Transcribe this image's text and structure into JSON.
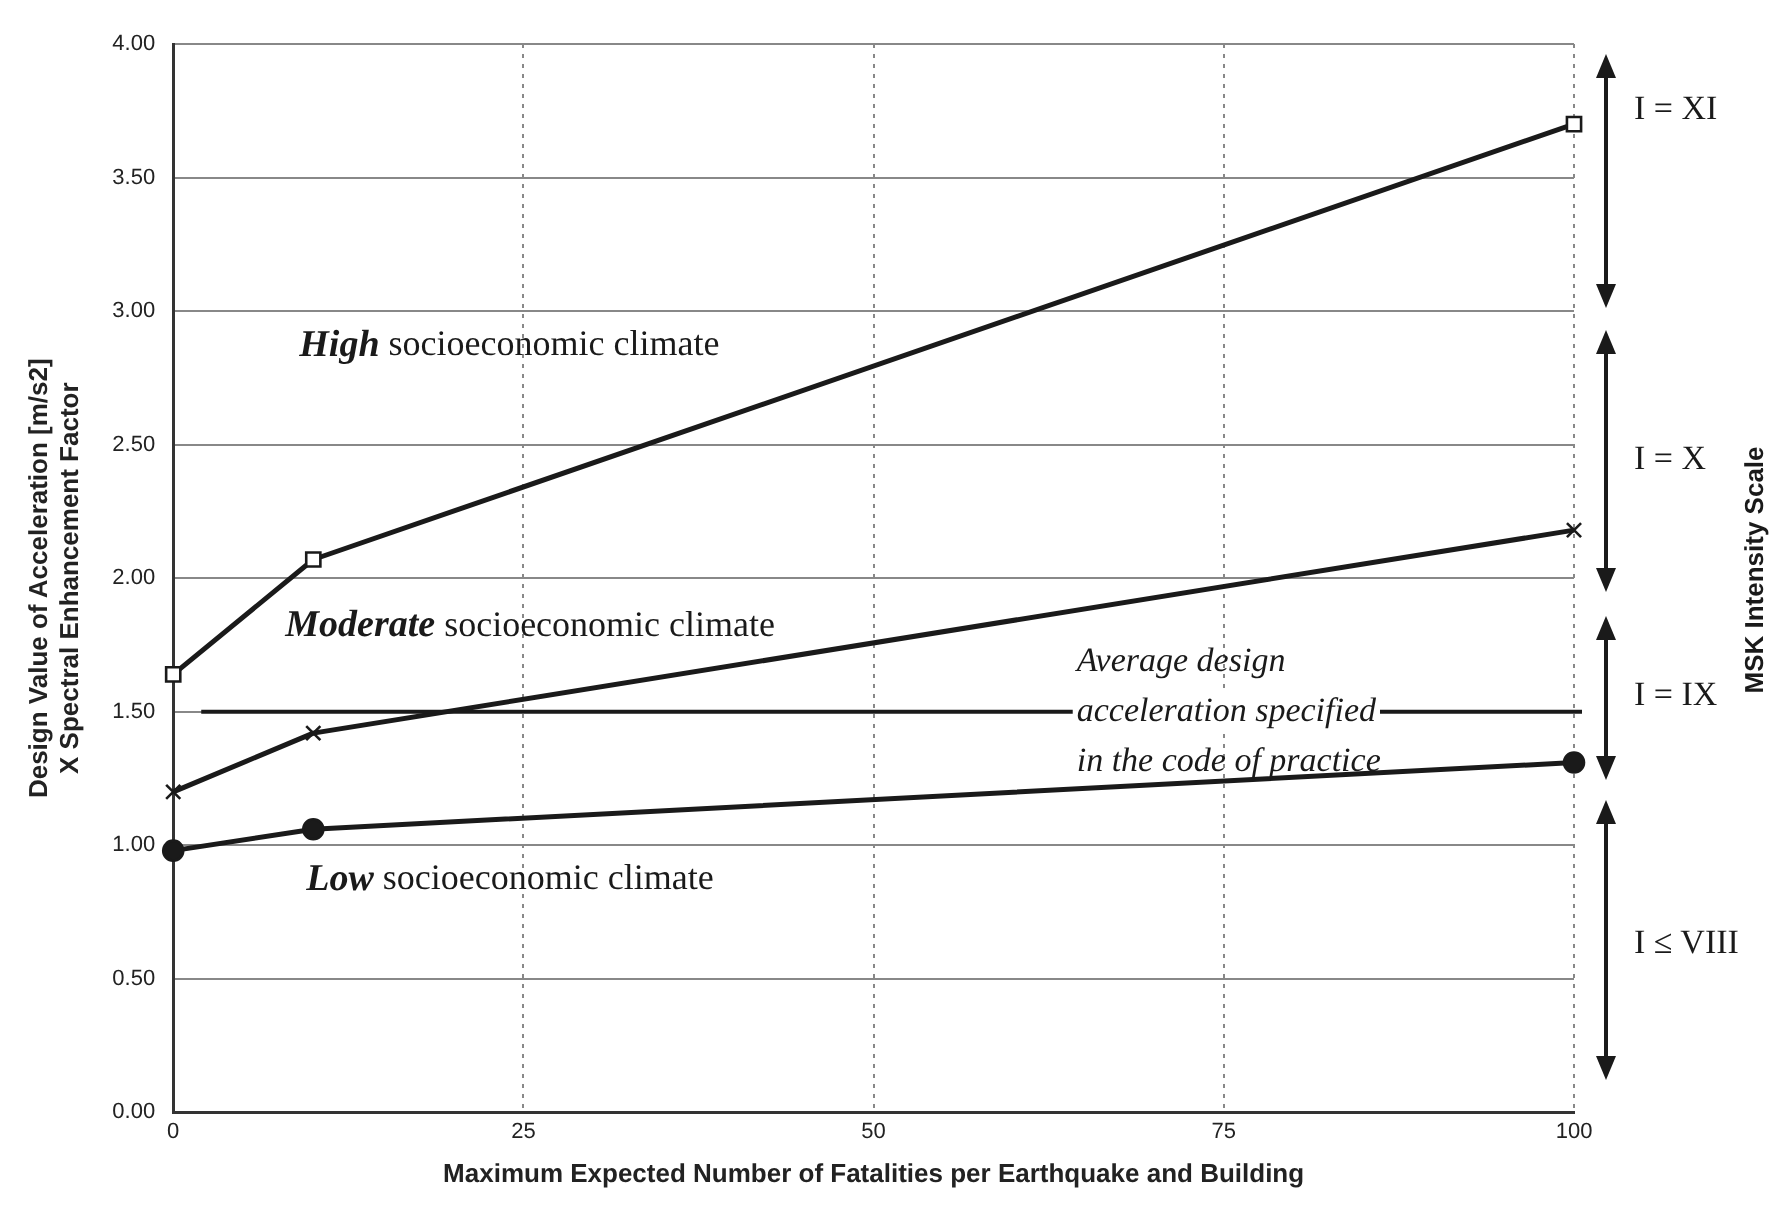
{
  "chart_data": {
    "type": "line",
    "xlabel": "Maximum Expected Number of Fatalities per Earthquake and Building",
    "ylabel": "Design Value of Acceleration [m/s2]\nX Spectral Enhancement Factor",
    "x": [
      0,
      10,
      100
    ],
    "series": [
      {
        "name": "High socioeconomic climate",
        "color": "#1a1a1a",
        "marker": "square",
        "values": [
          1.64,
          2.07,
          3.7
        ]
      },
      {
        "name": "Moderate socioeconomic climate",
        "color": "#1a1a1a",
        "marker": "cross",
        "values": [
          1.2,
          1.42,
          2.18
        ]
      },
      {
        "name": "Low socioeconomic climate",
        "color": "#1a1a1a",
        "marker": "circle",
        "values": [
          0.98,
          1.06,
          1.31
        ]
      }
    ],
    "xlim": [
      0,
      100
    ],
    "xticks": [
      0,
      25,
      50,
      75,
      100
    ],
    "ylim": [
      0,
      4
    ],
    "yticks": [
      {
        "value": 0,
        "label": "0.00"
      },
      {
        "value": 0.5,
        "label": "0.50"
      },
      {
        "value": 1,
        "label": "1.00"
      },
      {
        "value": 1.5,
        "label": "1.50"
      },
      {
        "value": 2,
        "label": "2.00"
      },
      {
        "value": 2.5,
        "label": "2.50"
      },
      {
        "value": 3,
        "label": "3.00"
      },
      {
        "value": 3.5,
        "label": "3.50"
      },
      {
        "value": 4,
        "label": "4.00"
      }
    ],
    "ref_lines": [
      {
        "axis": "y",
        "value": 1.5,
        "label": "Average design acceleration specified in the code of practice",
        "color": "#1a1a1a"
      }
    ],
    "annotations": [
      "MSK Intensity Scale",
      "I = XI",
      "I = X",
      "I = IX",
      "I ≤ VIII"
    ],
    "grid": true,
    "legend": false,
    "line_style": "solid"
  }
}
